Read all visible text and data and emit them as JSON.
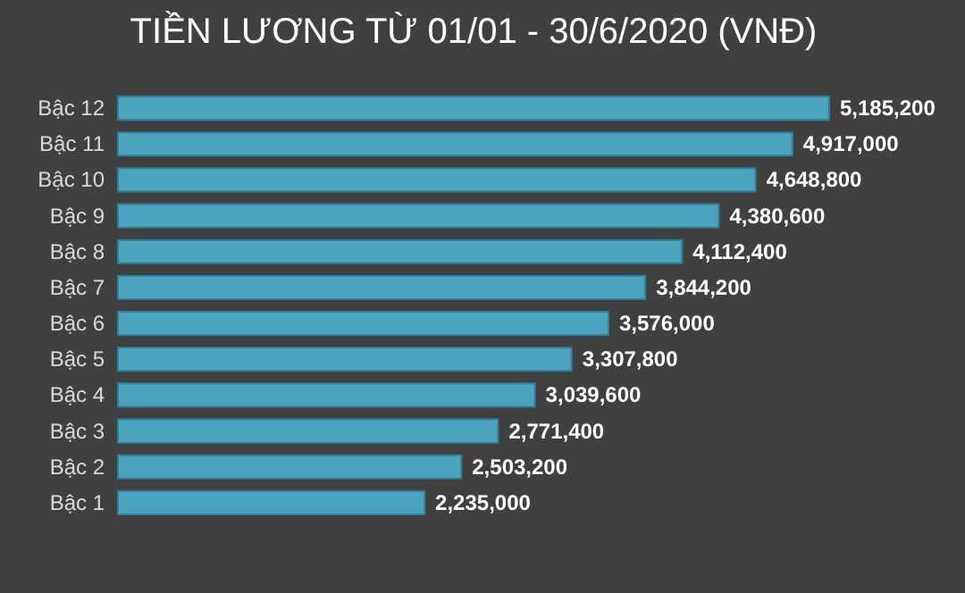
{
  "chart_data": {
    "type": "bar",
    "orientation": "horizontal",
    "title": "TIỀN LƯƠNG TỪ 01/01 - 30/6/2020 (VNĐ)",
    "categories": [
      "Bậc 12",
      "Bậc 11",
      "Bậc 10",
      "Bậc 9",
      "Bậc 8",
      "Bậc 7",
      "Bậc 6",
      "Bậc 5",
      "Bậc 4",
      "Bậc 3",
      "Bậc 2",
      "Bậc 1"
    ],
    "values": [
      5185200,
      4917000,
      4648800,
      4380600,
      4112400,
      3844200,
      3576000,
      3307800,
      3039600,
      2771400,
      2503200,
      2235000
    ],
    "color": "#4ba3bd",
    "value_labels": [
      "5,185,200",
      "4,917,000",
      "4,648,800",
      "4,380,600",
      "4,112,400",
      "3,844,200",
      "3,576,000",
      "3,307,800",
      "3,039,600",
      "2,771,400",
      "2,503,200",
      "2,235,000"
    ]
  }
}
